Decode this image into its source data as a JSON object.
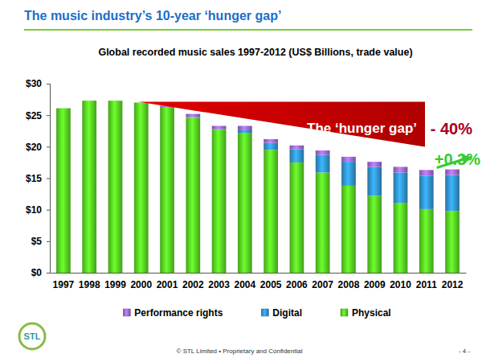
{
  "chart_data": {
    "type": "bar",
    "title": "The music industry’s 10-year ‘hunger gap’",
    "subtitle": "Global recorded music sales 1997-2012 (US$ Billions, trade value)",
    "categories": [
      "1997",
      "1998",
      "1999",
      "2000",
      "2001",
      "2002",
      "2003",
      "2004",
      "2005",
      "2006",
      "2007",
      "2008",
      "2009",
      "2010",
      "2011",
      "2012"
    ],
    "series": [
      {
        "name": "Physical",
        "color": "#55cc22",
        "values": [
          26.1,
          27.3,
          27.3,
          27.0,
          26.2,
          24.6,
          22.7,
          22.2,
          19.5,
          17.5,
          15.9,
          13.8,
          12.2,
          11.1,
          10.1,
          9.8
        ]
      },
      {
        "name": "Digital",
        "color": "#2f8fc8",
        "values": [
          0,
          0,
          0,
          0,
          0,
          0.1,
          0.1,
          0.4,
          1.1,
          2.1,
          2.8,
          3.8,
          4.6,
          4.8,
          5.3,
          5.7
        ]
      },
      {
        "name": "Performance rights",
        "color": "#9966cc",
        "values": [
          0,
          0,
          0,
          0,
          0.3,
          0.5,
          0.5,
          0.7,
          0.6,
          0.6,
          0.7,
          0.8,
          0.8,
          0.9,
          0.9,
          0.9
        ]
      }
    ],
    "ylim": [
      0,
      30
    ],
    "yticks": [
      {
        "value": 0,
        "label": "$0"
      },
      {
        "value": 5,
        "label": "$5"
      },
      {
        "value": 10,
        "label": "$10"
      },
      {
        "value": 15,
        "label": "$15"
      },
      {
        "value": 20,
        "label": "$20"
      },
      {
        "value": 25,
        "label": "$25"
      },
      {
        "value": 30,
        "label": "$30"
      }
    ],
    "grid": false,
    "stacked": true,
    "legend": "bottom",
    "annotations": [
      "The ‘hunger gap’",
      "- 40%",
      "+0.3%",
      "© STL Limited  •  Proprietary and Confidential",
      "- 4 -",
      "STL"
    ]
  }
}
